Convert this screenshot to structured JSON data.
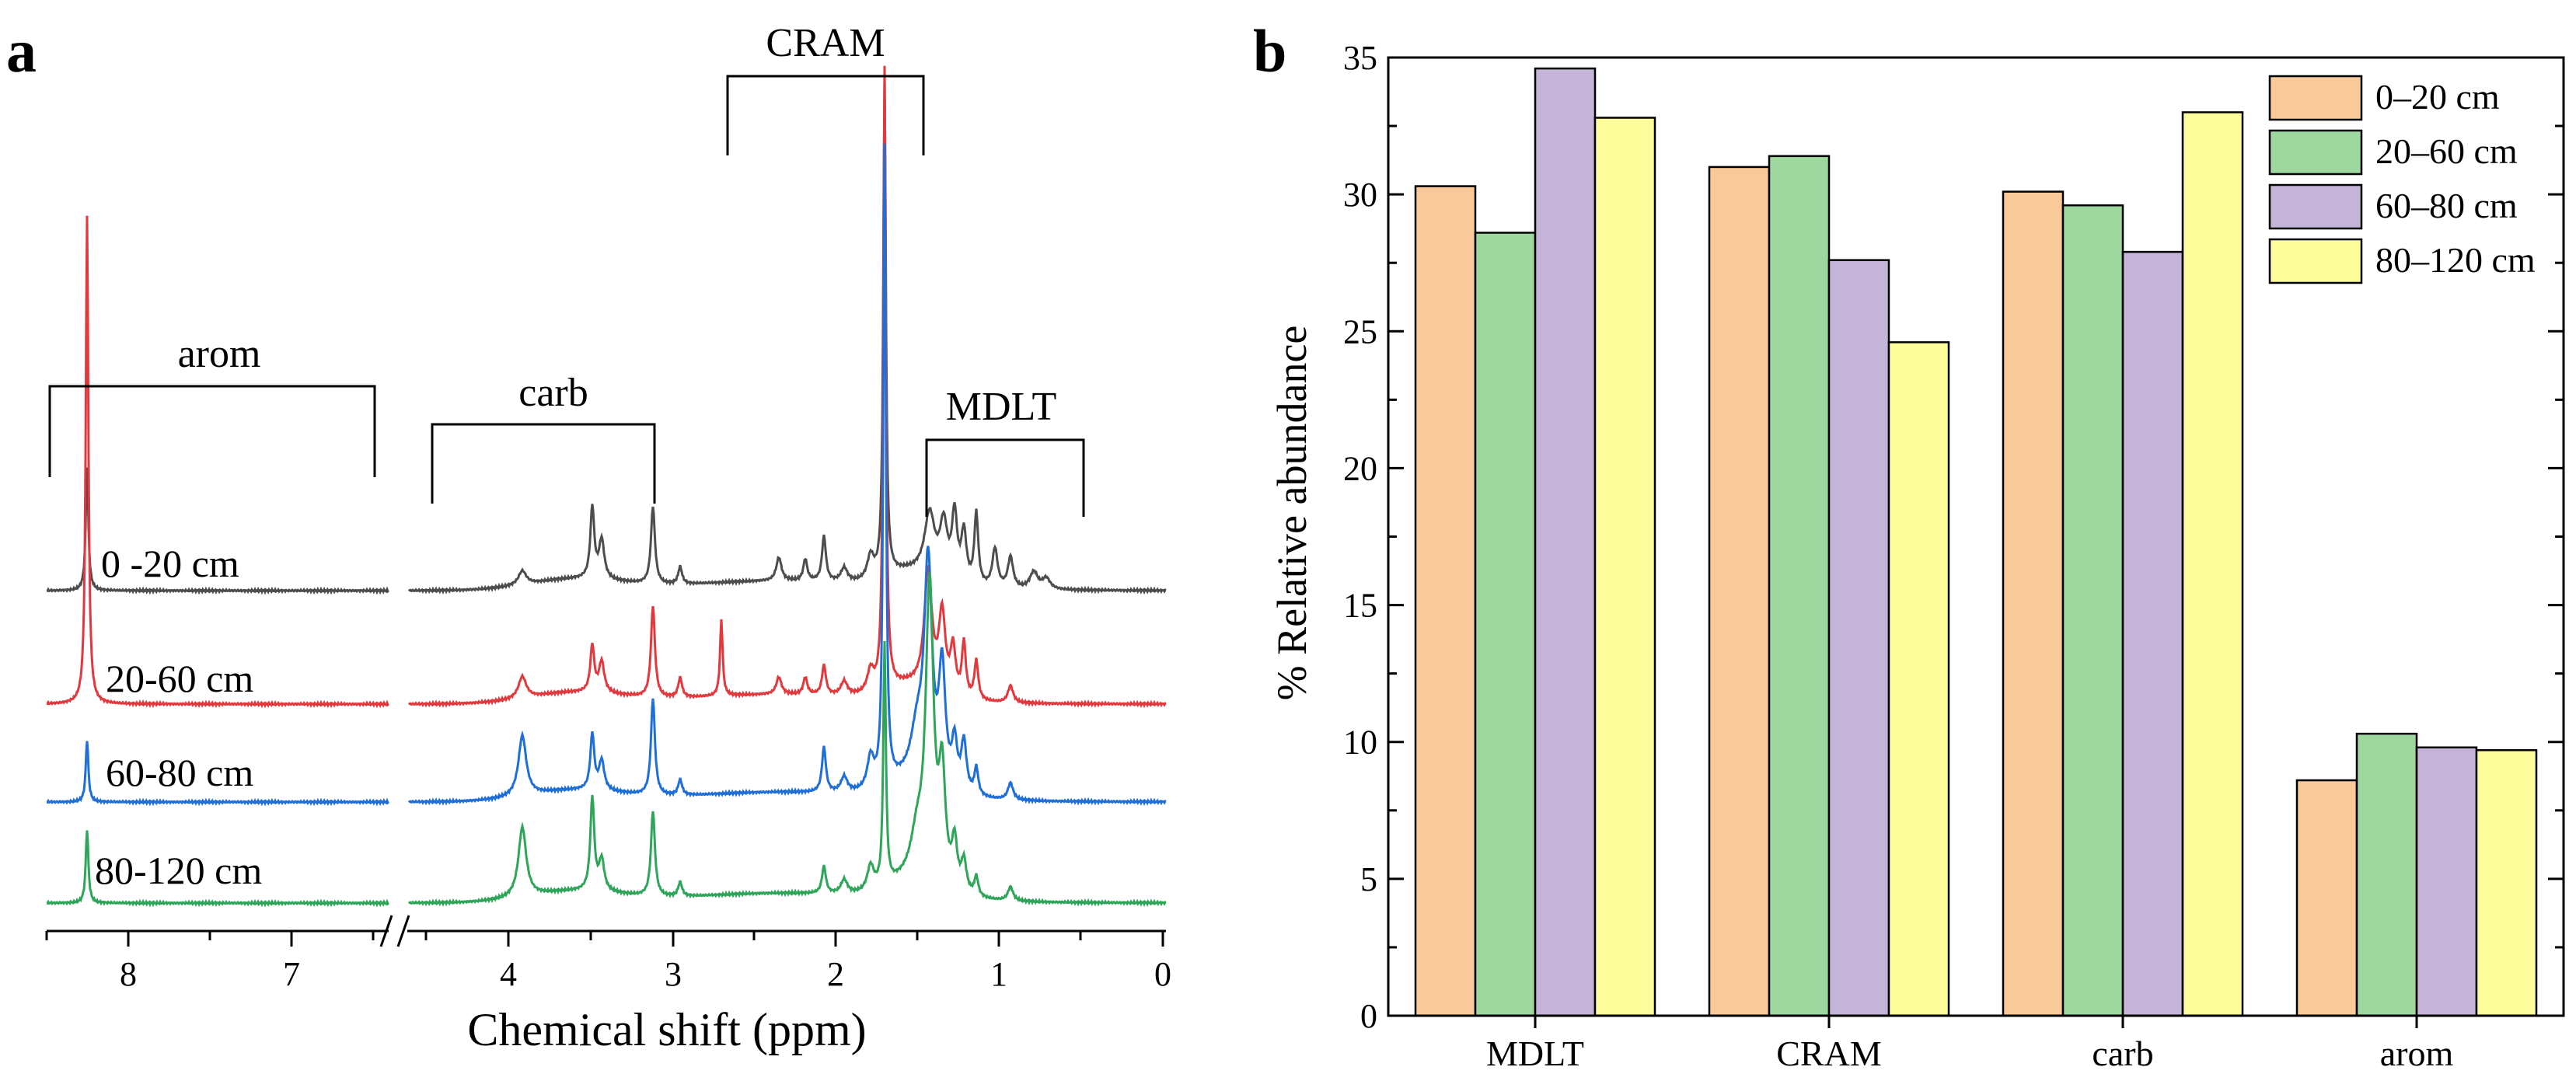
{
  "panel_a": {
    "letter": "a",
    "xlabel": "Chemical shift (ppm)",
    "left_ticks": [
      "8",
      "7"
    ],
    "right_ticks": [
      "4",
      "3",
      "2",
      "1",
      "0"
    ],
    "regions": {
      "arom": "arom",
      "carb": "carb",
      "cram": "CRAM",
      "mdlt": "MDLT"
    },
    "spectra": [
      {
        "label": "0 -20 cm",
        "color": "#4d4d4d"
      },
      {
        "label": "20-60 cm",
        "color": "#e0393e"
      },
      {
        "label": "60-80 cm",
        "color": "#1f6fd6"
      },
      {
        "label": "80-120 cm",
        "color": "#2fa55a"
      }
    ]
  },
  "panel_b": {
    "letter": "b"
  },
  "chart_data": [
    {
      "type": "line",
      "title": "",
      "xlabel": "Chemical shift (ppm)",
      "ylabel": "",
      "x_axis": "broken axis, reversed, segments 8.5–6.6 and 4.6–0 ppm",
      "series_names": [
        "0 -20 cm",
        "20-60 cm",
        "60-80 cm",
        "80-120 cm"
      ],
      "region_brackets": [
        {
          "name": "arom",
          "range_ppm": [
            8.5,
            6.6
          ]
        },
        {
          "name": "carb",
          "range_ppm": [
            4.4,
            3.1
          ]
        },
        {
          "name": "CRAM",
          "range_ppm": [
            2.7,
            1.5
          ]
        },
        {
          "name": "MDLT",
          "range_ppm": [
            1.5,
            0.5
          ]
        }
      ]
    },
    {
      "type": "bar",
      "categories": [
        "MDLT",
        "CRAM",
        "carb",
        "arom"
      ],
      "series": [
        {
          "name": "0–20 cm",
          "color": "#f9c99a",
          "values": [
            30.3,
            31.0,
            30.1,
            8.6
          ]
        },
        {
          "name": "20–60 cm",
          "color": "#9fd89e",
          "values": [
            28.6,
            31.4,
            29.6,
            10.3
          ]
        },
        {
          "name": "60–80 cm",
          "color": "#c3b4d8",
          "values": [
            34.6,
            27.6,
            27.9,
            9.8
          ]
        },
        {
          "name": "80–120 cm",
          "color": "#fdfd9b",
          "values": [
            32.8,
            24.6,
            33.0,
            9.7
          ]
        }
      ],
      "title": "",
      "xlabel": "",
      "ylabel": "% Relative abundance",
      "ylim": [
        0,
        35
      ],
      "yticks": [
        "0",
        "5",
        "10",
        "15",
        "20",
        "25",
        "30",
        "35"
      ],
      "legend": "top-right"
    }
  ]
}
